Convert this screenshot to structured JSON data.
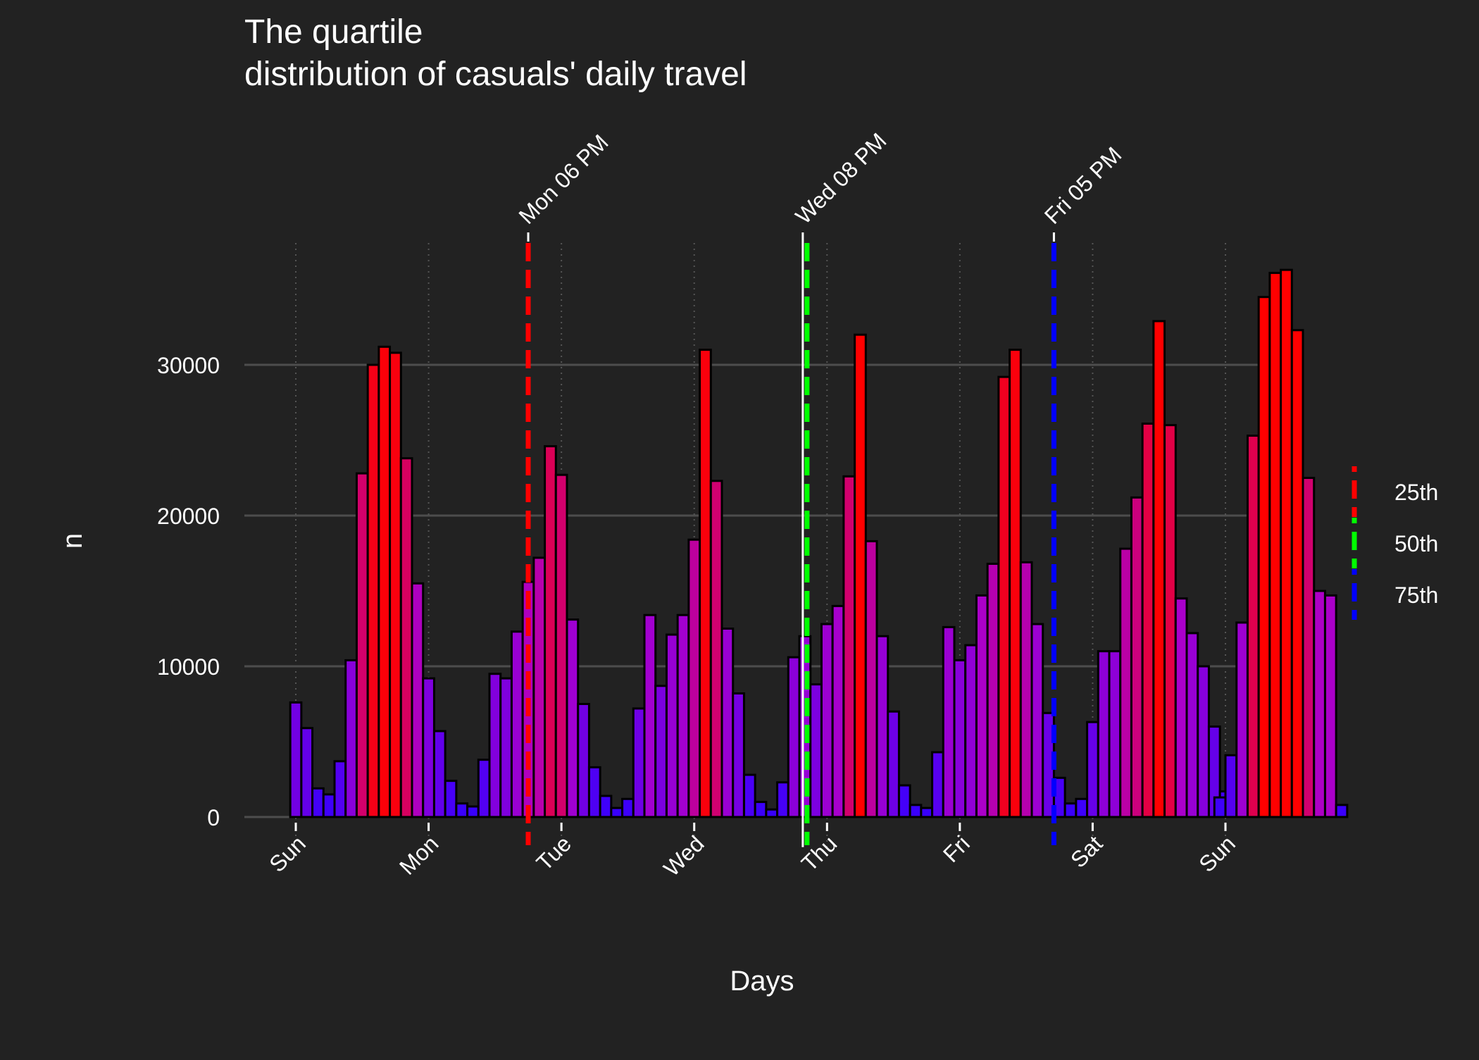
{
  "chart_data": {
    "type": "bar",
    "title_lines": [
      "The quartile",
      "distribution of casuals' daily travel"
    ],
    "xlabel": "Days",
    "ylabel": "n",
    "ylim": [
      -2000,
      38000
    ],
    "yticks": [
      0,
      10000,
      20000,
      30000
    ],
    "xticks": [
      "Sun",
      "Mon",
      "Tue",
      "Wed",
      "Thu",
      "Fri",
      "Sat",
      "Sun"
    ],
    "x_unit": "hours since Sunday 00:00",
    "bar_width_hours": 2,
    "x": [
      0,
      2,
      4,
      6,
      8,
      10,
      12,
      14,
      16,
      18,
      20,
      22,
      24,
      26,
      28,
      30,
      32,
      34,
      36,
      38,
      40,
      42,
      44,
      46,
      48,
      50,
      52,
      54,
      56,
      58,
      60,
      62,
      64,
      66,
      68,
      70,
      72,
      74,
      76,
      78,
      80,
      82,
      84,
      86,
      88,
      90,
      92,
      94,
      96,
      98,
      100,
      102,
      104,
      106,
      108,
      110,
      112,
      114,
      116,
      118,
      120,
      122,
      124,
      126,
      128,
      130,
      132,
      134,
      136,
      138,
      140,
      142,
      144,
      146,
      148,
      150,
      152,
      154,
      156,
      158,
      160,
      162,
      164,
      166,
      168
    ],
    "values": [
      7600,
      5900,
      1900,
      1500,
      3700,
      10400,
      22800,
      30000,
      31200,
      30800,
      23800,
      15500,
      9200,
      5700,
      2400,
      900,
      700,
      3800,
      9500,
      9200,
      12300,
      15600,
      17200,
      24600,
      22700,
      13100,
      7500,
      3300,
      1400,
      600,
      1200,
      7200,
      13400,
      8700,
      12100,
      13400,
      18400,
      31000,
      22300,
      12500,
      8200,
      2800,
      1000,
      500,
      2300,
      10600,
      12000,
      8800,
      12800,
      14000,
      22600,
      32000,
      18300,
      12000,
      7000,
      2100,
      800,
      600,
      4300,
      12600,
      10400,
      11400,
      14700,
      16800,
      29200,
      31000,
      16900,
      12800,
      6900,
      2600,
      900,
      1200,
      6300,
      11000,
      11000,
      17800,
      21200,
      26100,
      32900,
      26000,
      14500,
      12200,
      10000,
      6000,
      1700
    ],
    "extra_bars": [
      {
        "x": 167,
        "value": 1300
      },
      {
        "x": 169,
        "value": 4100
      },
      {
        "x": 171,
        "value": 12900
      },
      {
        "x": 173,
        "value": 25300
      },
      {
        "x": 175,
        "value": 34500
      },
      {
        "x": 177,
        "value": 36100
      },
      {
        "x": 179,
        "value": 36300
      },
      {
        "x": 181,
        "value": 32300
      },
      {
        "x": 183,
        "value": 22500
      },
      {
        "x": 185,
        "value": 15000
      },
      {
        "x": 187,
        "value": 14700
      },
      {
        "x": 189,
        "value": 800
      }
    ],
    "quartile_lines": [
      {
        "label": "Mon 06 PM",
        "x": 42,
        "legend": "25th",
        "color": "#ff0000"
      },
      {
        "label": "Wed 08 PM",
        "x": 92,
        "legend": "50th",
        "color": "#00ff00"
      },
      {
        "label": "Fri 05 PM",
        "x": 137,
        "legend": "75th",
        "color": "#0000ff"
      }
    ],
    "legend": [
      "25th",
      "50th",
      "75th"
    ],
    "legend_position": "right",
    "colors": {
      "background": "#222222",
      "low": "#3300ff",
      "mid": "#aa00cc",
      "high": "#ff0000",
      "grid": "#4d4d4d",
      "text": "#ffffff"
    }
  }
}
